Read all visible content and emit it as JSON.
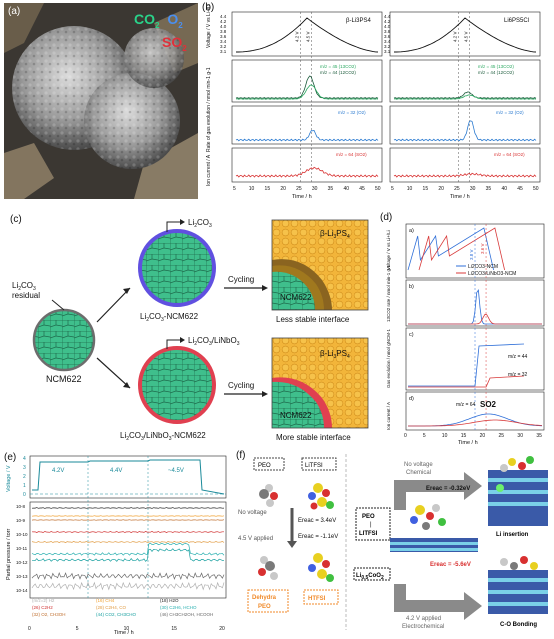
{
  "panel_labels": {
    "a": "(a)",
    "b": "(b)",
    "c": "(c)",
    "d": "(d)",
    "e": "(e)",
    "f": "(f)"
  },
  "panel_a": {
    "gas_labels": {
      "co2": "CO",
      "co2_sub": "2",
      "o2": "O",
      "o2_sub": "2",
      "so2": "SO",
      "so2_sub": "2"
    },
    "colors": {
      "co2": "#2ad28a",
      "o2": "#4a8ff0",
      "so2": "#e0303a"
    }
  },
  "panel_b": {
    "left_title": "β-Li3PS4",
    "right_title": "Li6PS5Cl",
    "ylabel_voltage": "Voltage / V vs Li+/Li",
    "ylabel_rate": "Rate of gas evolution / nmol min-1 g-1",
    "ylabel_current": "Ion current / A",
    "xlabel": "Time / h",
    "x_ticks": [
      "5",
      "10",
      "15",
      "20",
      "25",
      "30",
      "35",
      "40",
      "45",
      "50"
    ],
    "v_ticks": [
      "4.4",
      "4.2",
      "4.0",
      "3.8",
      "3.6",
      "3.4",
      "3.2",
      "3.1"
    ],
    "markers": [
      "4.2 V",
      "4.5 V"
    ],
    "co2_legend": [
      "m/z = 45 (13CO2)",
      "m/z = 44 (12CO2)"
    ],
    "o2_legend": "m/z = 32 (O2)",
    "so2_legend": "m/z = 64 (SO2)",
    "colors": {
      "voltage": "#111111",
      "co2_45": "#2aa860",
      "co2_44": "#1a5a3a",
      "o2": "#2a7ad0",
      "so2": "#d83030"
    }
  },
  "panel_c": {
    "residual": "Li2CO3 residual",
    "ncm": "NCM622",
    "top_coat_label": "Li2CO3",
    "top_particle": "Li2CO3-NCM622",
    "bottom_coat_label": "Li2CO3/LiNbO3",
    "bottom_particle": "Li2CO3/LiNbO3-NCM622",
    "cycling": "Cycling",
    "electrolyte": "β-Li3PS4",
    "ncm_zoom": "NCM622",
    "less": "Less stable interface",
    "more": "More stable interface"
  },
  "panel_d": {
    "sub": [
      "a)",
      "b)",
      "c)",
      "d)"
    ],
    "legend": [
      "Li2CO3-NCM",
      "Li2CO3/LiNbO3-NCM"
    ],
    "markers": [
      "3.8 V",
      "3.6 V"
    ],
    "ylabel_voltage": "Voltage / V vs Li+/Li",
    "ylabel_co2": "13CO2 rate / nmol min-1 g-1",
    "ylabel_gas": "Gas evolution / nmol gNCM-1",
    "ylabel_current": "Ion current / A",
    "mz44": "m/z = 44",
    "mz32": "m/z = 32",
    "mz64": "m/z = 64",
    "so2": "SO2",
    "xlabel": "Time / h",
    "x_ticks": [
      "0",
      "5",
      "10",
      "15",
      "20",
      "25",
      "30",
      "35"
    ],
    "colors": {
      "blue": "#2f6fd8",
      "red": "#d83a3a"
    }
  },
  "panel_e": {
    "ylabel_voltage": "Voltage / V",
    "ylabel_pressure": "Partial pressure / torr",
    "xlabel": "Time / h",
    "v_ticks": [
      "4",
      "3",
      "2",
      "1",
      "0"
    ],
    "x_ticks": [
      "0",
      "5",
      "10",
      "15",
      "20"
    ],
    "steps": [
      "4.2V",
      "4.4V",
      "~4.5V"
    ],
    "p_ticks": [
      "10-8",
      "10-9",
      "10-10",
      "10-11",
      "10-12",
      "10-13",
      "10-14"
    ],
    "legend": [
      {
        "text": "(m/z=2) H2",
        "color": "#b0b0b0"
      },
      {
        "text": "(16) CH4",
        "color": "#f0a030"
      },
      {
        "text": "(18) H2O",
        "color": "#222222"
      },
      {
        "text": "(26) C2H2",
        "color": "#d03030"
      },
      {
        "text": "(28) C2H4, CO",
        "color": "#e09a40"
      },
      {
        "text": "(30) C2H6, HCHO",
        "color": "#2ab0b0"
      },
      {
        "text": "(32) O2, CH3OH",
        "color": "#c07030"
      },
      {
        "text": "(44) CO2, CH3CHO",
        "color": "#19a0a0"
      },
      {
        "text": "(46) CH3CH2OH, HCOOH",
        "color": "#6a6a6a"
      }
    ]
  },
  "panel_f": {
    "peo": "PEO",
    "litfsi": "LiTFSI",
    "no_voltage": "No voltage",
    "applied": "4.5 V applied",
    "e1": "Ereac = 3.4eV",
    "e2": "Ereac = -1.1eV",
    "dehydra": "Dehydra PEO",
    "htfsi": "HTFSI",
    "chem": "No voltage Chemical",
    "peo_litfsi": "PEO | LiTFSI",
    "e3": "Ereac = -0.32eV",
    "e4": "Ereac = -5.6eV",
    "lico": "Li0.5CoO2",
    "electrochem": "4.2 V applied Electrochemical",
    "li_insertion": "Li insertion",
    "co_bonding": "C-O Bonding"
  }
}
